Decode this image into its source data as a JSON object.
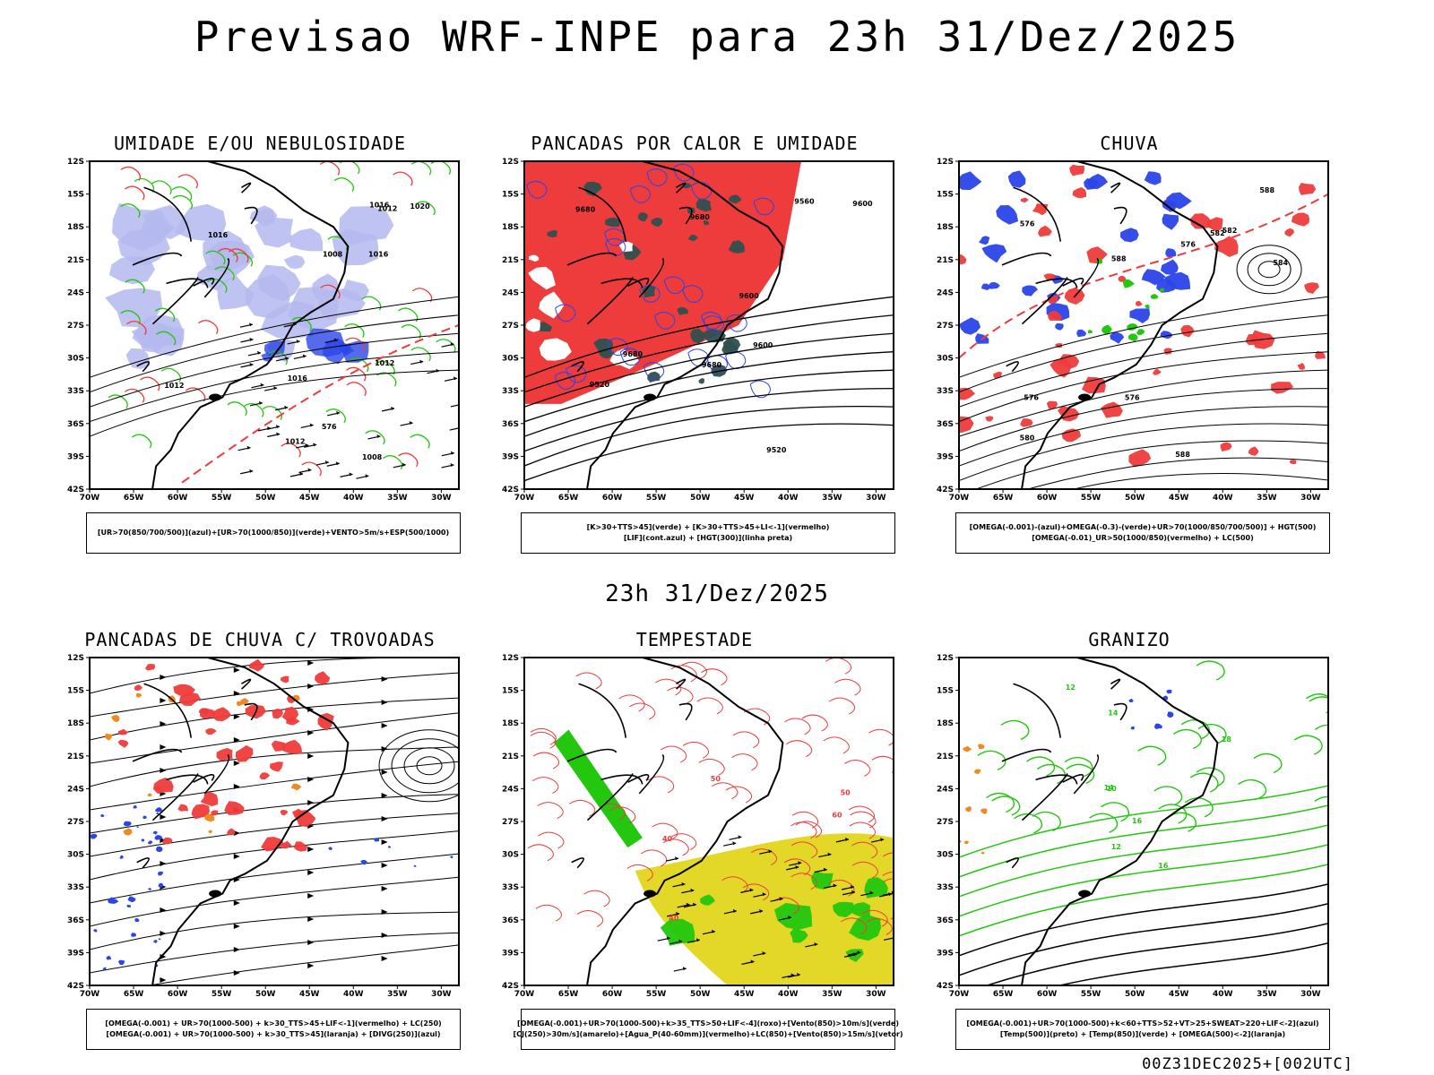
{
  "main_title": "Previsao WRF-INPE  para 23h 31/Dez/2025",
  "mid_title": "23h 31/Dez/2025",
  "footer_stamp": "00Z31DEC2025+[002UTC]",
  "axes": {
    "lat_labels": [
      "12S",
      "15S",
      "18S",
      "21S",
      "24S",
      "27S",
      "30S",
      "33S",
      "36S",
      "39S",
      "42S"
    ],
    "lon_labels": [
      "70W",
      "65W",
      "60W",
      "55W",
      "50W",
      "45W",
      "40W",
      "35W",
      "30W"
    ]
  },
  "colors": {
    "red": "#ee3b3b",
    "blue": "#2b45e8",
    "lightblue": "#b4b8ee",
    "green": "#22c70e",
    "darkgreen": "#2f4f4f",
    "yellow": "#e3d827",
    "orange": "#ee8a20",
    "black": "#000000"
  },
  "panels": [
    {
      "title": "UMIDADE E/OU NEBULOSIDADE",
      "legend": [
        "[UR>70(850/700/500)](azul)+[UR>70(1000/850)](verde)+VENTO>5m/s+ESP(500/1000)"
      ],
      "contour_labels": [
        "1012",
        "1016",
        "1020",
        "1012",
        "1016",
        "1012",
        "1016",
        "1008",
        "576",
        "1012",
        "1016",
        "1008"
      ]
    },
    {
      "title": "PANCADAS POR CALOR E UMIDADE",
      "legend": [
        "[K>30+TTS>45](verde) + [K>30+TTS>45+LI<-1](vermelho)",
        "[LIF](cont.azul) + [HGT(300)](linha preta)"
      ],
      "contour_labels": [
        "9680",
        "9680",
        "9680",
        "9600",
        "9680",
        "9560",
        "9600",
        "9520",
        "9600",
        "9520"
      ]
    },
    {
      "title": "CHUVA",
      "legend": [
        "[OMEGA(-0.001)-(azul)+OMEGA(-0.3)-(verde)+UR>70(1000/850/700/500)] + HGT(500)",
        "[OMEGA(-0.01)_UR>50(1000/850)(vermelho) + LC(500)"
      ],
      "contour_labels": [
        "588",
        "588",
        "584",
        "588",
        "580",
        "576",
        "582",
        "576",
        "576",
        "576",
        "582"
      ]
    },
    {
      "title": "PANCADAS DE CHUVA C/ TROVOADAS",
      "legend": [
        "[OMEGA(-0.001) + UR>70(1000-500) + k>30_TTS>45+LIF<-1](vermelho) + LC(250)",
        "[OMEGA(-0.001) + UR>70(1000-500) + k>30_TTS>45](laranja) + [DIVG(250)](azul)"
      ],
      "contour_labels": []
    },
    {
      "title": "TEMPESTADE",
      "legend": [
        "[OMEGA(-0.001)+UR>70(1000-500)+k>35_TTS>50+LIF<-4](roxo)+[Vento(850)>10m/s](verde)",
        "[CJ(250)>30m/s](amarelo)+[Agua_P(40-60mm)](vermelho)+LC(850)+[Vento(850)>15m/s](vetor)"
      ],
      "contour_labels": [
        "40",
        "50",
        "60",
        "50",
        "40"
      ]
    },
    {
      "title": "GRANIZO",
      "legend": [
        "[OMEGA(-0.001)+UR>70(1000-500)+k<60+TTS>52+VT>25+SWEAT>220+LIF<-2](azul)",
        "[Temp(500)](preto) + [Temp(850)](verde) + [OMEGA(500)<-2](laranja)"
      ],
      "contour_labels": [
        "18",
        "16",
        "14",
        "12",
        "10",
        "16",
        "14",
        "12"
      ]
    }
  ]
}
